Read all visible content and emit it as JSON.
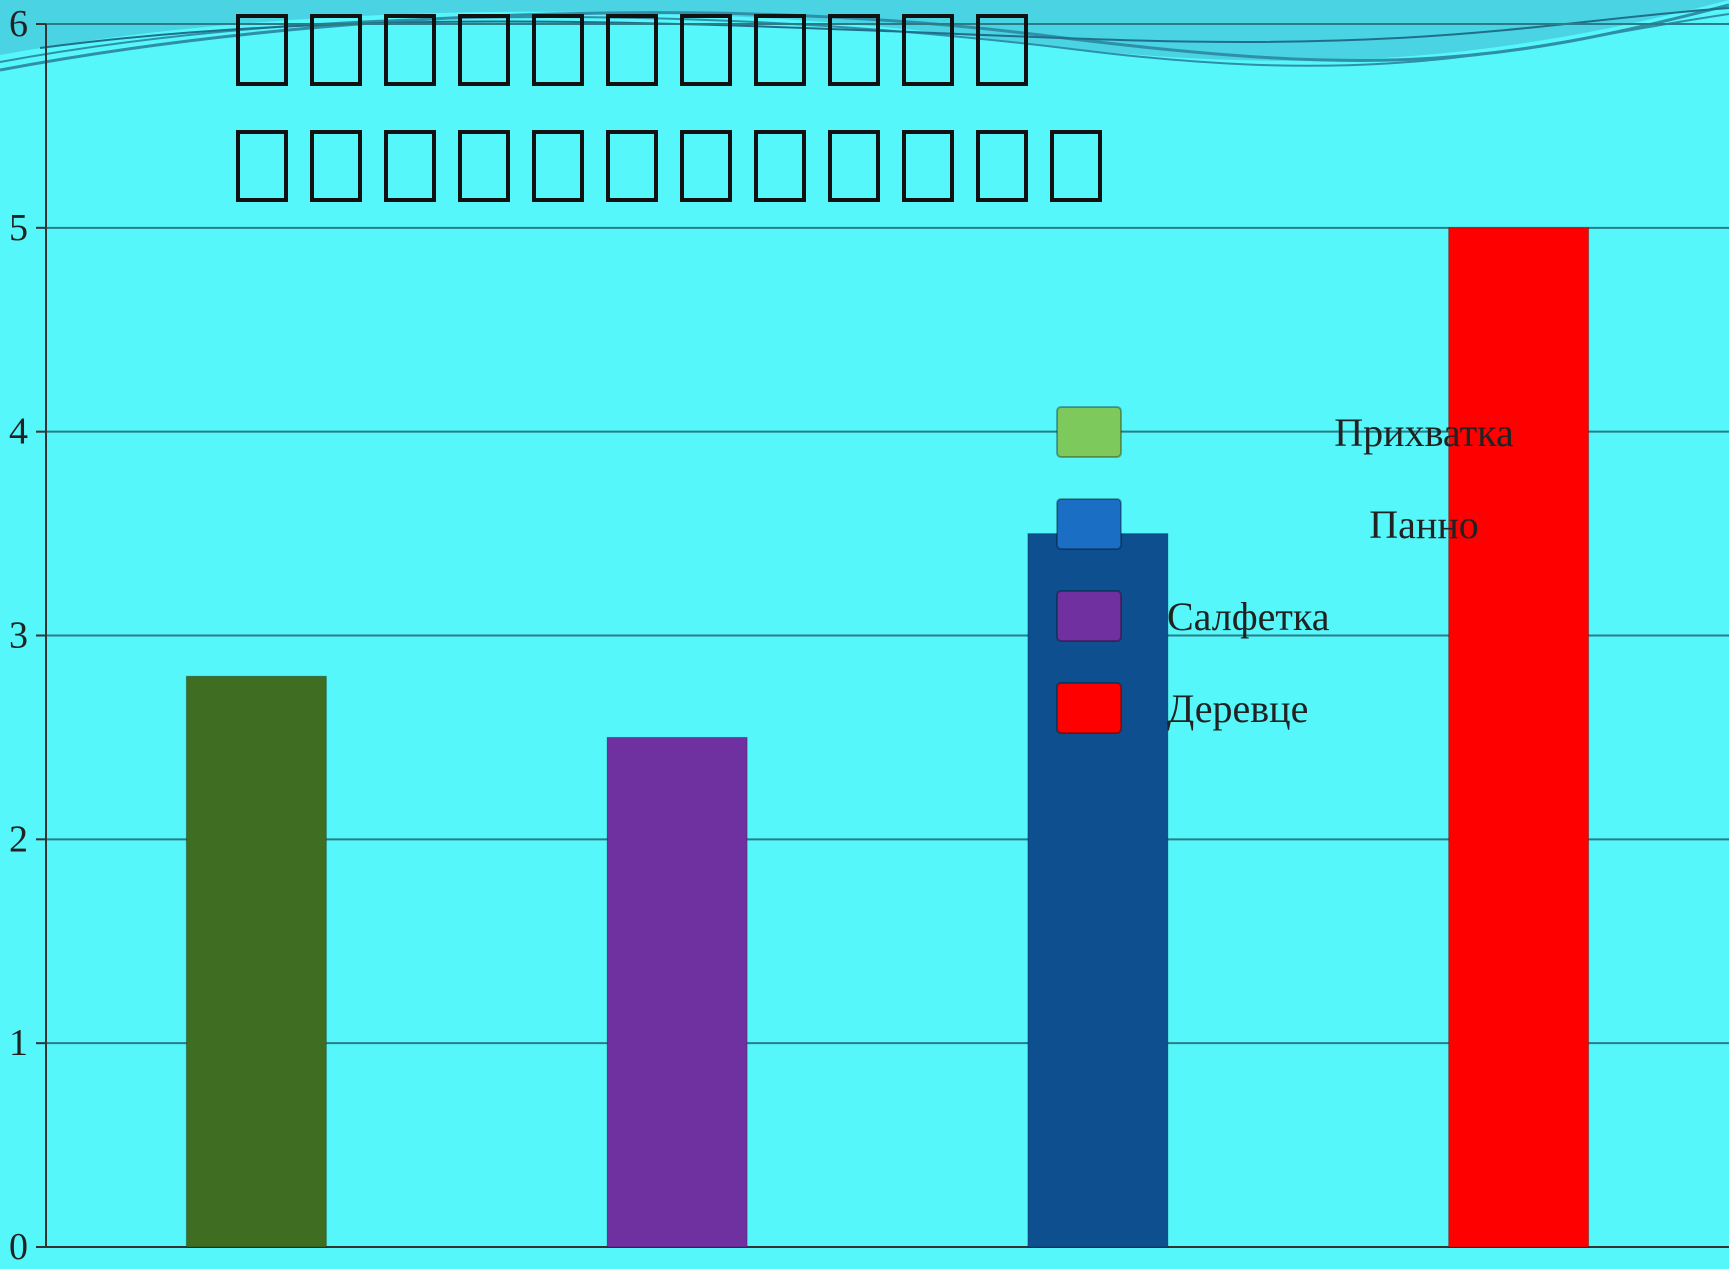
{
  "chart_data": {
    "type": "bar",
    "title_glyph_rows": [
      11,
      12
    ],
    "categories": [
      "",
      "",
      "",
      ""
    ],
    "values": [
      2.8,
      2.5,
      3.5,
      5
    ],
    "bar_colors": [
      "#3f6e22",
      "#6f30a0",
      "#0d4f8f",
      "#ff0000"
    ],
    "ylim": [
      0,
      6
    ],
    "yticks": [
      "0",
      "1",
      "2",
      "3",
      "4",
      "5",
      "6"
    ],
    "grid": true,
    "legend": {
      "placement": "center-right",
      "entries": [
        {
          "label": "Прихватка",
          "color": "#7dc95b"
        },
        {
          "label": "Панно",
          "color": "#1a6fc4"
        },
        {
          "label": "Салфетка",
          "color": "#7030a0"
        },
        {
          "label": "Деревце",
          "color": "#ff0000"
        }
      ]
    }
  },
  "decorations": {
    "background": "#55f7fb",
    "wave_color": "#3aa6b8",
    "emblem_gradient": [
      "#c0501f",
      "#e38a1e",
      "#f4c21f"
    ],
    "emblem_icon": "bonsai-tree-sunset-icon"
  }
}
